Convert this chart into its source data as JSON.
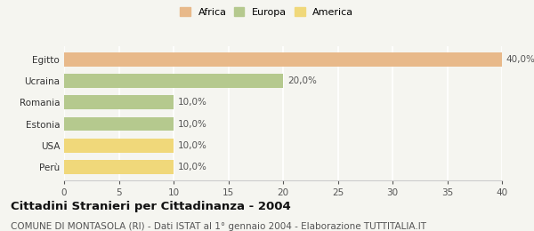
{
  "categories": [
    "Egitto",
    "Ucraina",
    "Romania",
    "Estonia",
    "USA",
    "Perù"
  ],
  "values": [
    40.0,
    20.0,
    10.0,
    10.0,
    10.0,
    10.0
  ],
  "bar_colors": [
    "#e8b98a",
    "#b5c98e",
    "#b5c98e",
    "#b5c98e",
    "#f0d87a",
    "#f0d87a"
  ],
  "bar_labels": [
    "40,0%",
    "20,0%",
    "10,0%",
    "10,0%",
    "10,0%",
    "10,0%"
  ],
  "legend_items": [
    {
      "label": "Africa",
      "color": "#e8b98a"
    },
    {
      "label": "Europa",
      "color": "#b5c98e"
    },
    {
      "label": "America",
      "color": "#f0d87a"
    }
  ],
  "xlim": [
    0,
    40
  ],
  "xticks": [
    0,
    5,
    10,
    15,
    20,
    25,
    30,
    35,
    40
  ],
  "title": "Cittadini Stranieri per Cittadinanza - 2004",
  "subtitle": "COMUNE DI MONTASOLA (RI) - Dati ISTAT al 1° gennaio 2004 - Elaborazione TUTTITALIA.IT",
  "background_color": "#f5f5f0",
  "grid_color": "#ffffff",
  "bar_label_fontsize": 7.5,
  "tick_fontsize": 7.5,
  "title_fontsize": 9.5,
  "subtitle_fontsize": 7.5,
  "legend_fontsize": 8
}
